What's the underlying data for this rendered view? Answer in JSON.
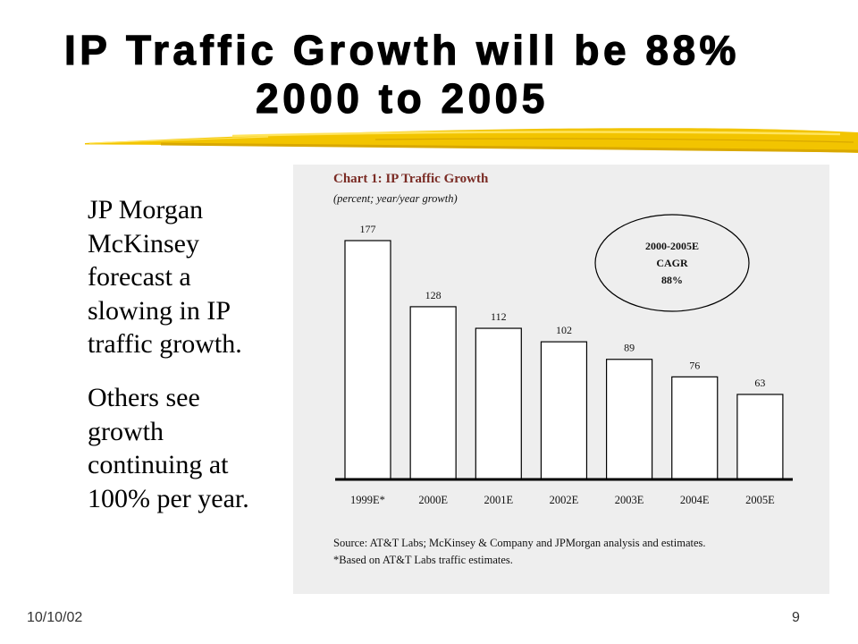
{
  "slide": {
    "title": {
      "line1": "IP Traffic Growth will be 88%",
      "line2": "2000 to 2005"
    },
    "body": {
      "paragraph1": [
        "JP Morgan",
        "McKinsey",
        "forecast a",
        "slowing in IP",
        "traffic growth."
      ],
      "paragraph2": [
        "Others see",
        "growth",
        "continuing at",
        "100% per year."
      ]
    },
    "footer": {
      "date": "10/10/02",
      "page_number": "9"
    }
  },
  "colors": {
    "brush_stroke": "#f2c400",
    "brush_highlight": "#ffe45c",
    "brush_shadow": "#d9a800",
    "chart_background": "#eeeeee",
    "chart_title": "#7a2b24"
  },
  "chart_data": {
    "type": "bar",
    "title": "Chart 1: IP Traffic Growth",
    "subtitle": "(percent; year/year growth)",
    "xlabel": "",
    "ylabel": "",
    "categories": [
      "1999E*",
      "2000E",
      "2001E",
      "2002E",
      "2003E",
      "2004E",
      "2005E"
    ],
    "values": [
      177,
      128,
      112,
      102,
      89,
      76,
      63
    ],
    "data_labels_shown": true,
    "y_axis_shown": false,
    "grid": false,
    "annotation": {
      "lines": [
        "2000-2005E",
        "CAGR",
        "88%"
      ]
    },
    "footnotes": [
      "Source: AT&T Labs; McKinsey & Company and JPMorgan analysis and estimates.",
      "*Based on AT&T Labs traffic estimates."
    ],
    "bar_fill": "#ffffff",
    "bar_outline": "#000000"
  }
}
